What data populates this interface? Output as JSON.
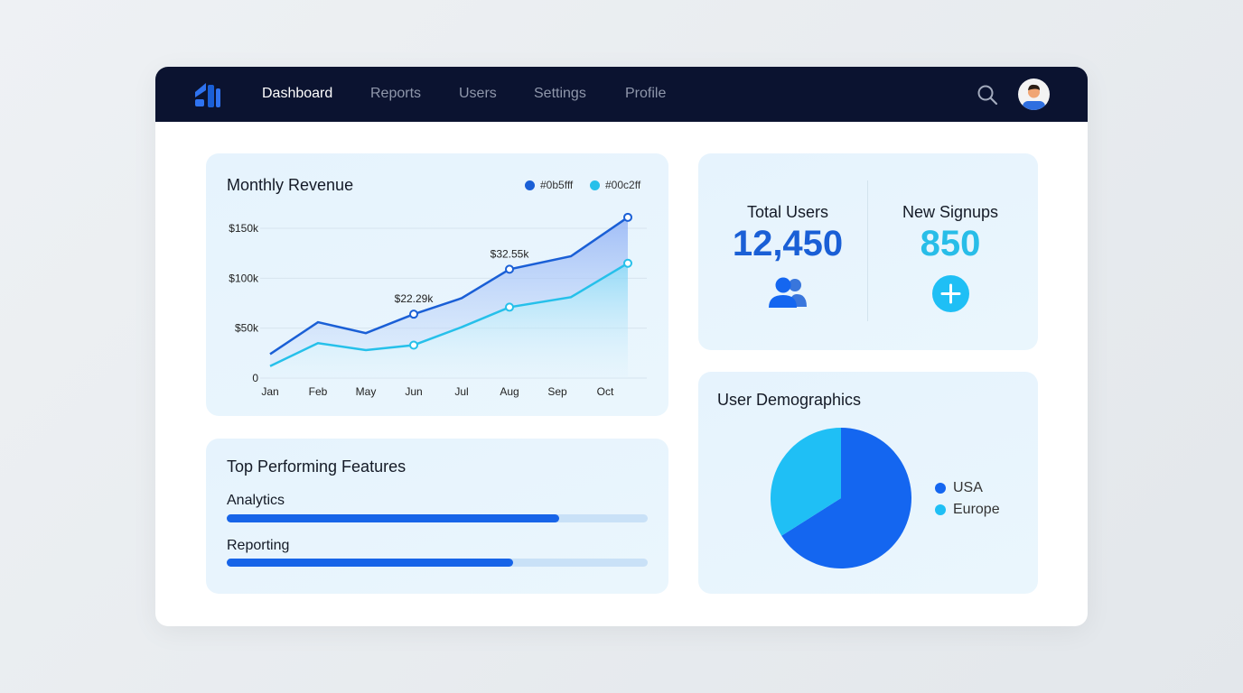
{
  "nav": {
    "items": [
      "Dashboard",
      "Reports",
      "Users",
      "Settings",
      "Profile"
    ],
    "active": "Dashboard"
  },
  "revenue": {
    "title": "Monthly Revenue",
    "legend": [
      "#0b5fff",
      "#00c2ff"
    ]
  },
  "chart_data": {
    "type": "line",
    "title": "Monthly Revenue",
    "categories": [
      "Jan",
      "Feb",
      "May",
      "Jun",
      "Jul",
      "Aug",
      "Sep",
      "Oct"
    ],
    "yticks": [
      "0",
      "$50k",
      "$100k",
      "$150k"
    ],
    "ylim": [
      0,
      160000
    ],
    "grid": true,
    "legend": "top-right",
    "series": [
      {
        "name": "#0b5fff",
        "color": "#1a5fd6",
        "values": [
          24000,
          56000,
          45000,
          64000,
          80000,
          109000,
          122000,
          161000
        ]
      },
      {
        "name": "#00c2ff",
        "color": "#26c0ea",
        "values": [
          12000,
          35000,
          28000,
          33000,
          51000,
          71000,
          81000,
          115000
        ]
      }
    ],
    "annotations": [
      {
        "label": "$22.29k",
        "index": 3
      },
      {
        "label": "$32.55k",
        "index": 5
      }
    ]
  },
  "features": {
    "title": "Top Performing Features",
    "items": [
      {
        "label": "Analytics",
        "value": 79
      },
      {
        "label": "Reporting",
        "value": 68
      }
    ]
  },
  "stats": {
    "total_users_label": "Total Users",
    "total_users": "12,450",
    "signups_label": "New Signups",
    "signups": "850"
  },
  "demographics": {
    "title": "User Demographics",
    "slices": [
      {
        "label": "USA",
        "value": 66,
        "color": "#1466f0"
      },
      {
        "label": "Europe",
        "value": 34,
        "color": "#1fbff5"
      }
    ]
  }
}
